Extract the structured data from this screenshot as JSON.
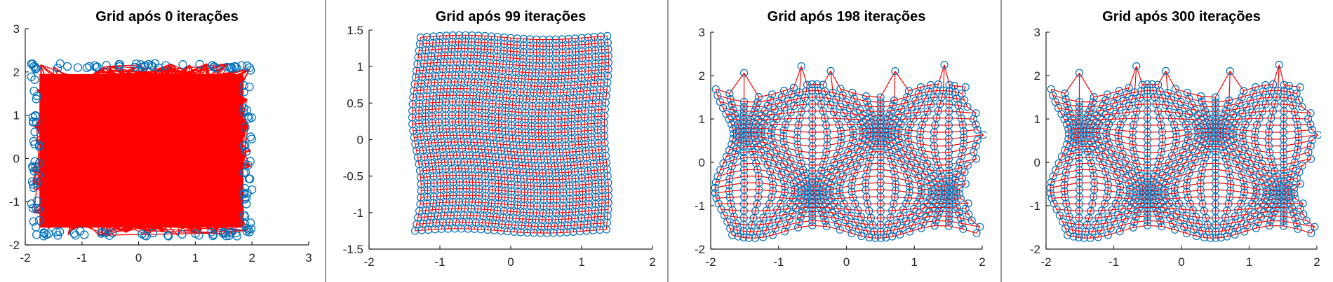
{
  "chart_data": [
    {
      "type": "scatter",
      "title": "Grid após 0 iterações",
      "xlim": [
        -2,
        3
      ],
      "ylim": [
        -2,
        3
      ],
      "xticks": [
        "-2",
        "-1",
        "0",
        "1",
        "2",
        "3"
      ],
      "yticks": [
        "-2",
        "-1",
        "0",
        "1",
        "2",
        "3"
      ],
      "grid": false,
      "state": "random",
      "extent": {
        "x": [
          -1.9,
          2.0
        ],
        "y": [
          -1.8,
          2.2
        ]
      },
      "marker_color": "#0072BD",
      "line_color": "#FF0000"
    },
    {
      "type": "scatter",
      "title": "Grid após 99 iterações",
      "xlim": [
        -2,
        2
      ],
      "ylim": [
        -1.5,
        1.5
      ],
      "xticks": [
        "-2",
        "-1",
        "0",
        "1",
        "2"
      ],
      "yticks": [
        "-1.5",
        "-1",
        "-0.5",
        "0",
        "0.5",
        "1",
        "1.5"
      ],
      "grid": false,
      "state": "ordered",
      "extent": {
        "x": [
          -1.35,
          1.35
        ],
        "y": [
          -1.25,
          1.4
        ]
      },
      "marker_color": "#0072BD",
      "line_color": "#FF0000"
    },
    {
      "type": "scatter",
      "title": "Grid após 198 iterações",
      "xlim": [
        -2,
        2
      ],
      "ylim": [
        -2,
        3
      ],
      "xticks": [
        "-2",
        "-1",
        "0",
        "1",
        "2"
      ],
      "yticks": [
        "-2",
        "-1",
        "0",
        "1",
        "2",
        "3"
      ],
      "grid": false,
      "state": "shape",
      "extent": {
        "x": [
          -1.85,
          1.85
        ],
        "y": [
          -1.75,
          2.1
        ]
      },
      "marker_color": "#0072BD",
      "line_color": "#FF0000"
    },
    {
      "type": "scatter",
      "title": "Grid após 300 iterações",
      "xlim": [
        -2,
        2
      ],
      "ylim": [
        -2,
        3
      ],
      "xticks": [
        "-2",
        "-1",
        "0",
        "1",
        "2"
      ],
      "yticks": [
        "-2",
        "-1",
        "0",
        "1",
        "2",
        "3"
      ],
      "grid": false,
      "state": "shape",
      "extent": {
        "x": [
          -1.85,
          1.85
        ],
        "y": [
          -1.75,
          2.1
        ]
      },
      "marker_color": "#0072BD",
      "line_color": "#FF0000"
    }
  ]
}
